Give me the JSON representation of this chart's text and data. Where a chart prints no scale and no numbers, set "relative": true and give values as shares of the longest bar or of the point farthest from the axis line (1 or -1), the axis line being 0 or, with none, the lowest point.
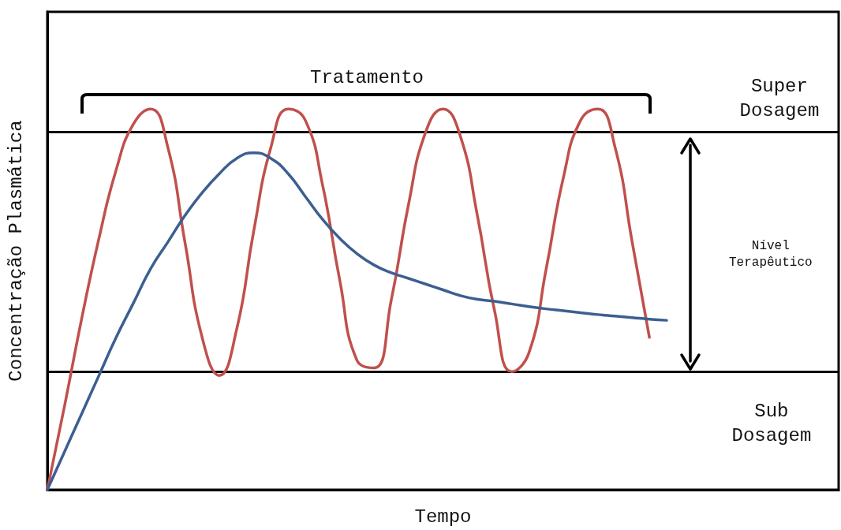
{
  "chart_data": {
    "type": "line",
    "relative": true,
    "xlabel": "Tempo",
    "ylabel": "Concentração Plasmática",
    "categories": [
      null,
      null,
      null,
      null,
      null,
      null,
      null,
      null,
      null,
      null,
      null,
      null,
      null,
      null,
      null,
      null,
      null,
      null,
      null,
      null,
      null,
      null,
      null,
      null,
      null,
      null,
      null,
      null,
      null,
      null,
      null,
      null,
      null,
      null,
      null,
      null,
      null,
      null,
      null,
      null,
      null,
      null,
      null,
      null,
      null,
      null,
      null
    ],
    "series": [
      {
        "color": "#c0504d",
        "values": [
          0,
          0.22,
          0.45,
          0.66,
          0.84,
          0.96,
          1.0,
          0.9,
          0.65,
          0.4,
          0.3,
          0.42,
          0.68,
          0.9,
          1.0,
          0.97,
          0.8,
          0.55,
          0.34,
          0.32,
          0.5,
          0.75,
          0.94,
          1.0,
          0.93,
          0.72,
          0.47,
          0.31,
          0.36,
          0.58,
          0.82,
          0.97,
          1.0,
          0.9,
          0.65,
          0.4,
          null,
          null,
          null,
          null,
          null,
          null,
          null,
          null,
          null,
          null,
          null
        ]
      },
      {
        "color": "#3c5f91",
        "values": [
          0,
          0.1,
          0.2,
          0.3,
          0.4,
          0.49,
          0.58,
          0.65,
          0.72,
          0.78,
          0.83,
          0.87,
          0.885,
          0.87,
          0.83,
          0.77,
          0.71,
          0.66,
          0.62,
          0.59,
          0.57,
          0.555,
          0.54,
          0.525,
          0.51,
          0.5,
          0.495,
          0.488,
          0.481,
          0.475,
          0.47,
          0.465,
          0.46,
          0.456,
          0.452,
          0.448,
          0.445,
          null,
          null,
          null,
          null,
          null,
          null,
          null,
          null,
          null,
          null
        ]
      }
    ],
    "ref_lines": [
      {
        "axis": "y",
        "value": 0.943,
        "color": "#000000"
      },
      {
        "axis": "y",
        "value": 0.31,
        "color": "#000000"
      }
    ],
    "annotations": [
      "Tratamento",
      "Super\nDosagem",
      "Nível\nTerapêutico",
      "Sub\nDosagem"
    ],
    "marker": "none",
    "line_style": "solid",
    "grid": false
  }
}
